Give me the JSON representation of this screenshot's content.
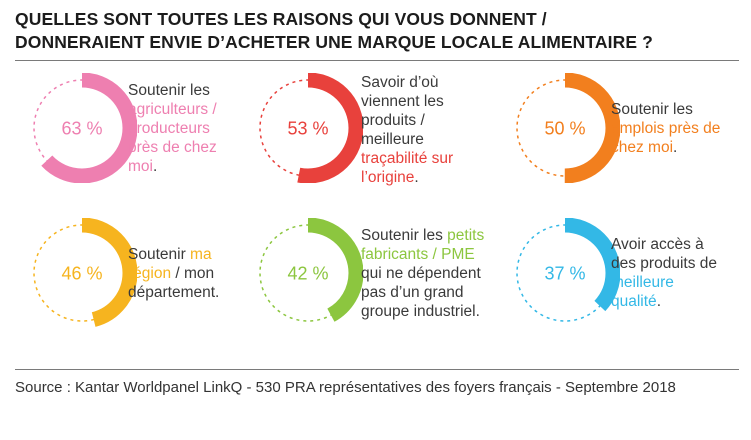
{
  "title": {
    "line1": "QUELLES SONT TOUTES LES RAISONS QUI VOUS DONNENT /",
    "line2": "DONNERAIENT ENVIE D’ACHETER UNE MARQUE LOCALE ALIMENTAIRE ?"
  },
  "chart_data": {
    "type": "pie",
    "title": "QUELLES SONT TOUTES LES RAISONS QUI VOUS DONNENT / DONNERAIENT ENVIE D’ACHETER UNE MARQUE LOCALE ALIMENTAIRE ?",
    "unit": "%",
    "items": [
      {
        "value": 63,
        "label": "63 %",
        "color": "#ee7fb0",
        "text": [
          {
            "t": "Soutenir les ",
            "hl": false
          },
          {
            "t": "agriculteurs / producteurs près de chez moi",
            "hl": true
          },
          {
            "t": ".",
            "hl": false
          }
        ]
      },
      {
        "value": 53,
        "label": "53 %",
        "color": "#e8413c",
        "text": [
          {
            "t": "Savoir d’où viennent les produits / meilleure ",
            "hl": false
          },
          {
            "t": "traçabilité sur l’origine",
            "hl": true
          },
          {
            "t": ".",
            "hl": false
          }
        ]
      },
      {
        "value": 50,
        "label": "50 %",
        "color": "#f27f1e",
        "text": [
          {
            "t": "Soutenir les ",
            "hl": false
          },
          {
            "t": "emplois près de chez moi",
            "hl": true
          },
          {
            "t": ".",
            "hl": false
          }
        ]
      },
      {
        "value": 46,
        "label": "46 %",
        "color": "#f6b41f",
        "text": [
          {
            "t": "Soutenir ",
            "hl": false
          },
          {
            "t": "ma région",
            "hl": true
          },
          {
            "t": " / mon département.",
            "hl": false
          }
        ]
      },
      {
        "value": 42,
        "label": "42 %",
        "color": "#8cc63f",
        "text": [
          {
            "t": "Soutenir les ",
            "hl": false
          },
          {
            "t": "petits fabricants / PME",
            "hl": true
          },
          {
            "t": " qui ne dépendent pas d’un grand groupe industriel.",
            "hl": false
          }
        ]
      },
      {
        "value": 37,
        "label": "37 %",
        "color": "#33b8e6",
        "text": [
          {
            "t": "Avoir accès à des produits de ",
            "hl": false
          },
          {
            "t": "meilleure qualité",
            "hl": true
          },
          {
            "t": ".",
            "hl": false
          }
        ]
      }
    ]
  },
  "source": "Source : Kantar Worldpanel LinkQ - 530 PRA représentatives des foyers français - Septembre 2018"
}
